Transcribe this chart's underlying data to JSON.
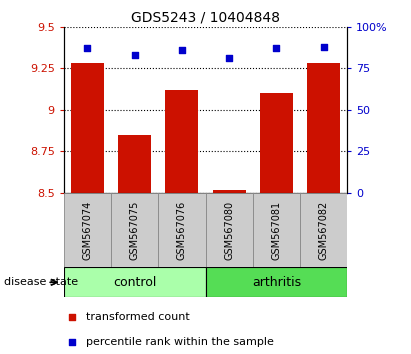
{
  "title": "GDS5243 / 10404848",
  "samples": [
    "GSM567074",
    "GSM567075",
    "GSM567076",
    "GSM567080",
    "GSM567081",
    "GSM567082"
  ],
  "bar_values": [
    9.28,
    8.85,
    9.12,
    8.52,
    9.1,
    9.28
  ],
  "scatter_values": [
    87,
    83,
    86,
    81,
    87,
    88
  ],
  "bar_color": "#cc1100",
  "scatter_color": "#0000cc",
  "ylim_left": [
    8.5,
    9.5
  ],
  "ylim_right": [
    0,
    100
  ],
  "yticks_left": [
    8.5,
    8.75,
    9.0,
    9.25,
    9.5
  ],
  "ytick_labels_left": [
    "8.5",
    "8.75",
    "9",
    "9.25",
    "9.5"
  ],
  "yticks_right": [
    0,
    25,
    50,
    75,
    100
  ],
  "ytick_labels_right": [
    "0",
    "25",
    "50",
    "75",
    "100%"
  ],
  "groups": [
    {
      "label": "control",
      "indices": [
        0,
        1,
        2
      ],
      "color": "#aaffaa"
    },
    {
      "label": "arthritis",
      "indices": [
        3,
        4,
        5
      ],
      "color": "#55dd55"
    }
  ],
  "disease_state_label": "disease state",
  "legend_bar_label": "transformed count",
  "legend_scatter_label": "percentile rank within the sample",
  "bar_bottom": 8.5,
  "bar_width": 0.7,
  "xtick_box_color": "#cccccc",
  "group_ctrl_color": "#aaffaa",
  "group_arth_color": "#55dd55"
}
